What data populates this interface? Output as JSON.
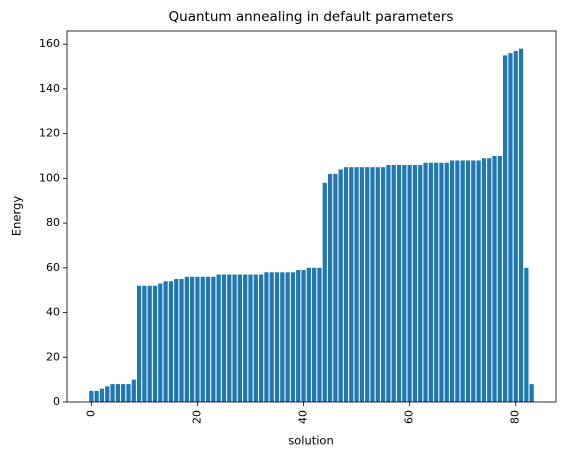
{
  "chart_data": {
    "type": "bar",
    "title": "Quantum annealing in default parameters",
    "xlabel": "solution",
    "ylabel": "Energy",
    "x": [
      0,
      1,
      2,
      3,
      4,
      5,
      6,
      7,
      8,
      9,
      10,
      11,
      12,
      13,
      14,
      15,
      16,
      17,
      18,
      19,
      20,
      21,
      22,
      23,
      24,
      25,
      26,
      27,
      28,
      29,
      30,
      31,
      32,
      33,
      34,
      35,
      36,
      37,
      38,
      39,
      40,
      41,
      42,
      43,
      44,
      45,
      46,
      47,
      48,
      49,
      50,
      51,
      52,
      53,
      54,
      55,
      56,
      57,
      58,
      59,
      60,
      61,
      62,
      63,
      64,
      65,
      66,
      67,
      68,
      69,
      70,
      71,
      72,
      73,
      74,
      75,
      76,
      77,
      78,
      79,
      80,
      81,
      82,
      83
    ],
    "values": [
      5,
      5,
      6,
      7,
      8,
      8,
      8,
      8,
      10,
      52,
      52,
      52,
      52,
      53,
      54,
      54,
      55,
      55,
      56,
      56,
      56,
      56,
      56,
      56,
      57,
      57,
      57,
      57,
      57,
      57,
      57,
      57,
      57,
      58,
      58,
      58,
      58,
      58,
      58,
      59,
      59,
      60,
      60,
      60,
      98,
      102,
      102,
      104,
      105,
      105,
      105,
      105,
      105,
      105,
      105,
      105,
      106,
      106,
      106,
      106,
      106,
      106,
      106,
      107,
      107,
      107,
      107,
      107,
      108,
      108,
      108,
      108,
      108,
      108,
      109,
      109,
      110,
      110,
      155,
      156,
      157,
      158,
      60,
      8
    ],
    "color": "#1f77b4",
    "xlim": [
      -4.59,
      87.59
    ],
    "xticks": [
      0,
      20,
      40,
      60,
      80
    ],
    "ylim": [
      0,
      165.9
    ],
    "yticks": [
      0,
      20,
      40,
      60,
      80,
      100,
      120,
      140,
      160
    ]
  }
}
